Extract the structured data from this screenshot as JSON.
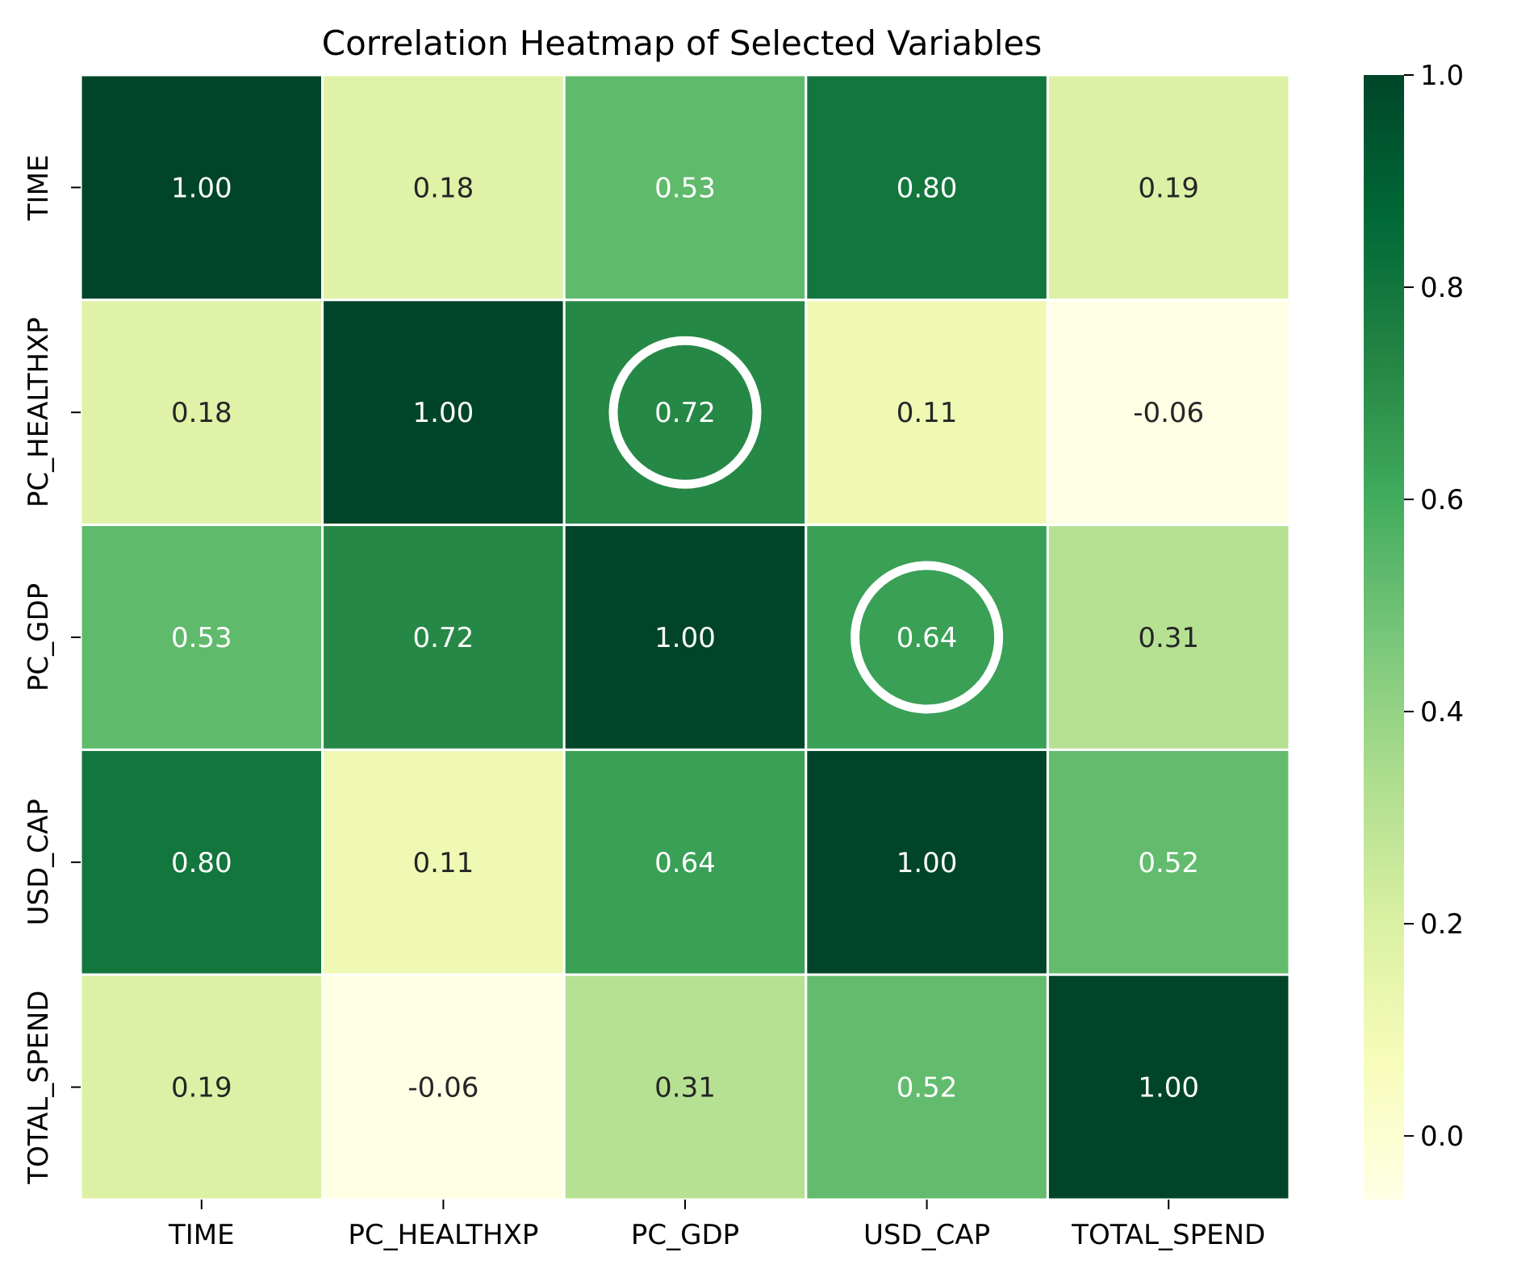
{
  "chart_data": {
    "type": "heatmap",
    "title": "Correlation Heatmap of Selected Variables",
    "x_labels": [
      "TIME",
      "PC_HEALTHXP",
      "PC_GDP",
      "USD_CAP",
      "TOTAL_SPEND"
    ],
    "y_labels": [
      "TIME",
      "PC_HEALTHXP",
      "PC_GDP",
      "USD_CAP",
      "TOTAL_SPEND"
    ],
    "matrix": [
      [
        1.0,
        0.18,
        0.53,
        0.8,
        0.19
      ],
      [
        0.18,
        1.0,
        0.72,
        0.11,
        -0.06
      ],
      [
        0.53,
        0.72,
        1.0,
        0.64,
        0.31
      ],
      [
        0.8,
        0.11,
        0.64,
        1.0,
        0.52
      ],
      [
        0.19,
        -0.06,
        0.31,
        0.52,
        1.0
      ]
    ],
    "cell_labels": [
      [
        "1.00",
        "0.18",
        "0.53",
        "0.80",
        "0.19"
      ],
      [
        "0.18",
        "1.00",
        "0.72",
        "0.11",
        "-0.06"
      ],
      [
        "0.53",
        "0.72",
        "1.00",
        "0.64",
        "0.31"
      ],
      [
        "0.80",
        "0.11",
        "0.64",
        "1.00",
        "0.52"
      ],
      [
        "0.19",
        "-0.06",
        "0.31",
        "0.52",
        "1.00"
      ]
    ],
    "colormap": "YlGn",
    "color_range": [
      -0.06,
      1.0
    ],
    "colorbar_ticks": [
      0.0,
      0.2,
      0.4,
      0.6,
      0.8,
      1.0
    ],
    "colorbar_tick_labels": [
      "0.0",
      "0.2",
      "0.4",
      "0.6",
      "0.8",
      "1.0"
    ],
    "highlighted_cells": [
      {
        "row": "PC_HEALTHXP",
        "col": "PC_GDP",
        "value": 0.72
      },
      {
        "row": "PC_GDP",
        "col": "USD_CAP",
        "value": 0.64
      }
    ],
    "grid_line_color": "#ffffff",
    "highlight_color": "#ffffff",
    "annotation_colors": {
      "dark": "#262626",
      "light": "#ffffff"
    }
  }
}
